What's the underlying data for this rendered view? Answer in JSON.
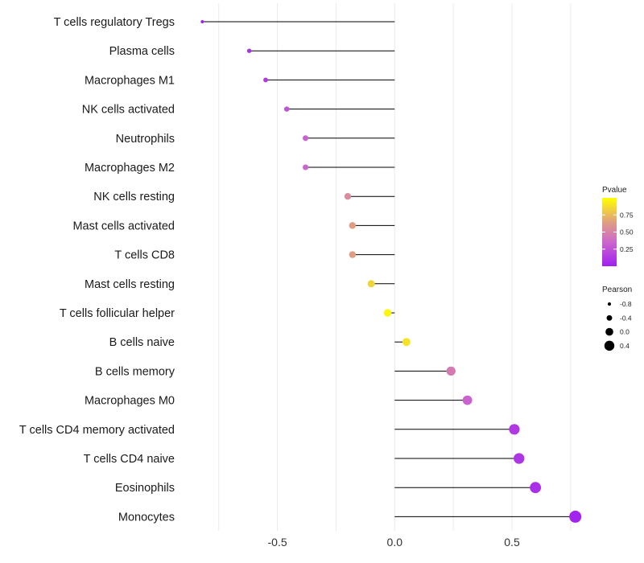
{
  "chart_data": {
    "type": "lollipop",
    "title": "",
    "xlabel": "",
    "ylabel": "",
    "xlim": [
      -0.9,
      0.85
    ],
    "x_ticks": [
      -0.5,
      0.0,
      0.5
    ],
    "x_tick_labels": [
      "-0.5",
      "0.0",
      "0.5"
    ],
    "grid": "vertical",
    "baseline": 0.0,
    "categories": [
      "T cells regulatory  Tregs",
      "Plasma cells",
      "Macrophages M1",
      "NK cells activated",
      "Neutrophils",
      "Macrophages M2",
      "NK cells resting",
      "Mast cells activated",
      "T cells CD8",
      "Mast cells resting",
      "T cells follicular helper",
      "B cells naive",
      "B cells memory",
      "Macrophages M0",
      "T cells CD4 memory activated",
      "T cells CD4 naive",
      "Eosinophils",
      "Monocytes"
    ],
    "pearson": [
      -0.82,
      -0.62,
      -0.55,
      -0.46,
      -0.38,
      -0.38,
      -0.2,
      -0.18,
      -0.18,
      -0.1,
      -0.03,
      0.05,
      0.24,
      0.31,
      0.51,
      0.53,
      0.6,
      0.77
    ],
    "pvalue": [
      0.02,
      0.08,
      0.12,
      0.25,
      0.32,
      0.33,
      0.55,
      0.65,
      0.65,
      0.85,
      0.97,
      0.9,
      0.45,
      0.32,
      0.12,
      0.1,
      0.07,
      0.02
    ],
    "legends": {
      "color": {
        "title": "Pvalue",
        "breaks": [
          0.25,
          0.5,
          0.75
        ],
        "labels": [
          "0.25",
          "0.50",
          "0.75"
        ],
        "range": [
          0.0,
          1.0
        ],
        "colors": [
          "#a020f0",
          "#cc66cc",
          "#e0a080",
          "#ffff00"
        ]
      },
      "size": {
        "title": "Pearson",
        "breaks": [
          -0.8,
          -0.4,
          0.0,
          0.4
        ],
        "labels": [
          "-0.8",
          "-0.4",
          "0.0",
          "0.4"
        ]
      }
    },
    "segment_color": "#000000",
    "grid_color": "#ebebeb",
    "legend_position": "right"
  }
}
